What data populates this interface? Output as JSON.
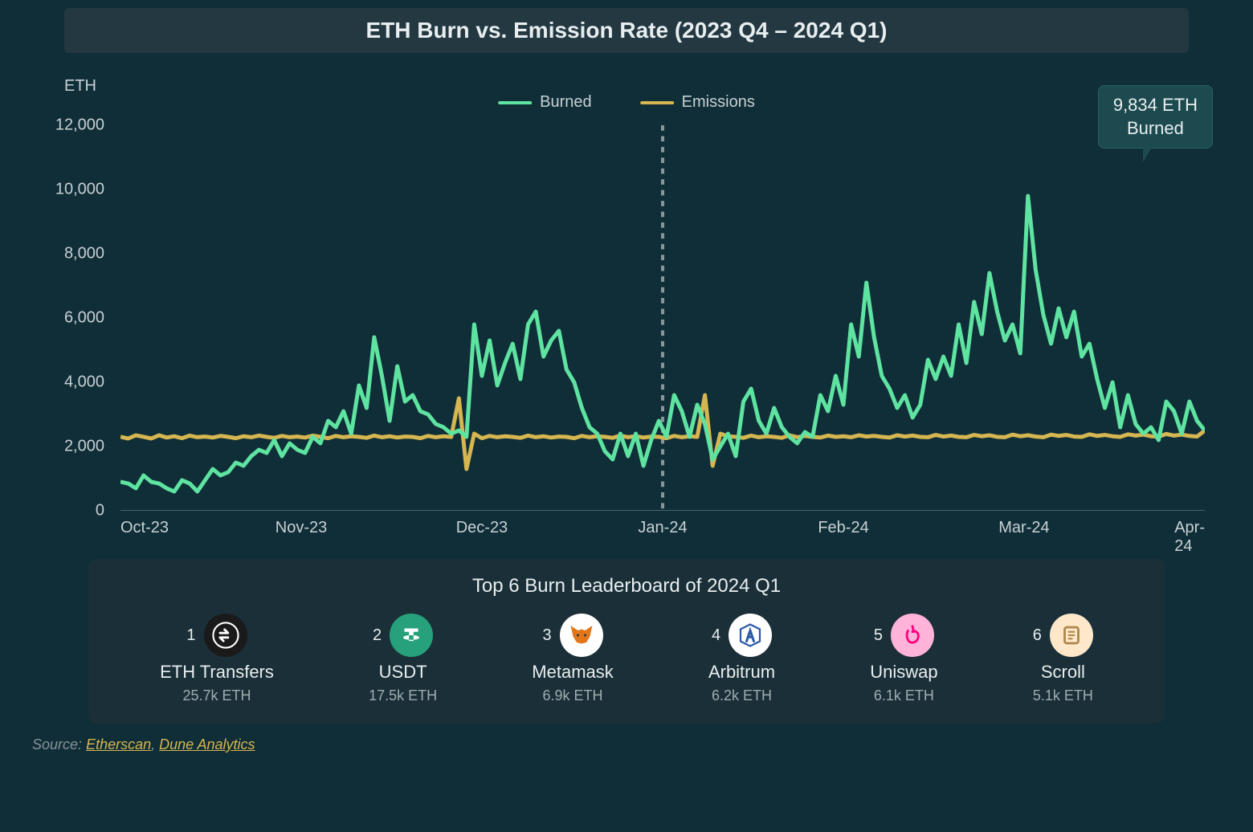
{
  "title": "ETH Burn vs. Emission Rate (2023 Q4 – 2024 Q1)",
  "chart": {
    "type": "line",
    "y_axis_title": "ETH",
    "ylim": [
      0,
      12000
    ],
    "y_ticks": [
      0,
      2000,
      4000,
      6000,
      8000,
      10000,
      12000
    ],
    "y_tick_labels": [
      "0",
      "2,000",
      "4,000",
      "6,000",
      "8,000",
      "10,000",
      "12,000"
    ],
    "x_labels": [
      "Oct-23",
      "Nov-23",
      "Dec-23",
      "Jan-24",
      "Feb-24",
      "Mar-24",
      "Apr-24"
    ],
    "x_positions_pct": [
      0,
      16.67,
      33.33,
      50,
      66.67,
      83.33,
      100
    ],
    "vline_at_pct": 50,
    "background_color": "#0f2e38",
    "grid_color": "#3a4a52",
    "axis_color": "#8a969c",
    "line_width": 3,
    "legend": [
      {
        "label": "Burned",
        "color": "#5fe3a1"
      },
      {
        "label": "Emissions",
        "color": "#d6b650"
      }
    ],
    "callout": {
      "line1": "9,834 ETH",
      "line2": "Burned"
    },
    "series": {
      "burned": {
        "color": "#5fe3a1",
        "values": [
          900,
          850,
          700,
          1100,
          900,
          850,
          700,
          600,
          950,
          850,
          600,
          950,
          1300,
          1100,
          1200,
          1500,
          1400,
          1700,
          1900,
          1800,
          2200,
          1700,
          2100,
          1900,
          1800,
          2300,
          2100,
          2800,
          2600,
          3100,
          2400,
          3900,
          3200,
          5400,
          4200,
          2800,
          4500,
          3400,
          3600,
          3100,
          3000,
          2700,
          2600,
          2400,
          2500,
          2300,
          5800,
          4200,
          5300,
          3900,
          4600,
          5200,
          4100,
          5800,
          6200,
          4800,
          5300,
          5600,
          4400,
          4000,
          3200,
          2600,
          2400,
          1850,
          1600,
          2400,
          1700,
          2400,
          1400,
          2200,
          2800,
          2300,
          3600,
          3100,
          2300,
          3300,
          2700,
          1600,
          2000,
          2400,
          1700,
          3400,
          3800,
          2800,
          2400,
          3200,
          2600,
          2300,
          2100,
          2450,
          2300,
          3600,
          3100,
          4200,
          3300,
          5800,
          4800,
          7100,
          5400,
          4200,
          3800,
          3200,
          3600,
          2900,
          3300,
          4700,
          4100,
          4800,
          4200,
          5800,
          4600,
          6500,
          5500,
          7400,
          6200,
          5300,
          5800,
          4900,
          9800,
          7500,
          6100,
          5200,
          6300,
          5400,
          6200,
          4800,
          5200,
          4100,
          3200,
          4000,
          2600,
          3600,
          2700,
          2400,
          2600,
          2200,
          3400,
          3100,
          2400,
          3400,
          2800,
          2500
        ]
      },
      "emissions": {
        "color": "#d6b650",
        "values": [
          2300,
          2250,
          2350,
          2300,
          2250,
          2350,
          2280,
          2320,
          2260,
          2340,
          2290,
          2310,
          2280,
          2330,
          2300,
          2260,
          2320,
          2290,
          2340,
          2300,
          2270,
          2330,
          2290,
          2310,
          2280,
          2340,
          2300,
          2260,
          2330,
          2290,
          2320,
          2300,
          2270,
          2340,
          2290,
          2320,
          2280,
          2310,
          2300,
          2260,
          2330,
          2290,
          2320,
          2300,
          3500,
          1300,
          2400,
          2260,
          2330,
          2290,
          2320,
          2300,
          2270,
          2340,
          2290,
          2320,
          2280,
          2310,
          2300,
          2260,
          2330,
          2290,
          2320,
          2300,
          2270,
          2340,
          2290,
          2320,
          2280,
          2310,
          2300,
          2260,
          2330,
          2290,
          2320,
          2300,
          3600,
          1400,
          2400,
          2320,
          2300,
          2270,
          2340,
          2290,
          2320,
          2300,
          2270,
          2350,
          2290,
          2330,
          2300,
          2280,
          2340,
          2300,
          2320,
          2290,
          2350,
          2310,
          2330,
          2300,
          2280,
          2350,
          2310,
          2340,
          2300,
          2290,
          2360,
          2310,
          2340,
          2300,
          2290,
          2360,
          2320,
          2350,
          2300,
          2290,
          2370,
          2320,
          2350,
          2310,
          2290,
          2370,
          2330,
          2360,
          2310,
          2300,
          2380,
          2330,
          2360,
          2320,
          2300,
          2380,
          2340,
          2370,
          2320,
          2310,
          2390,
          2340,
          2370,
          2330,
          2310,
          2500
        ]
      }
    }
  },
  "leaderboard": {
    "title": "Top 6 Burn Leaderboard of 2024 Q1",
    "items": [
      {
        "rank": "1",
        "name": "ETH Transfers",
        "value": "25.7k ETH",
        "icon_bg": "#1a1a1a",
        "icon_fg": "#ffffff",
        "icon_type": "swap"
      },
      {
        "rank": "2",
        "name": "USDT",
        "value": "17.5k ETH",
        "icon_bg": "#26a17b",
        "icon_fg": "#ffffff",
        "icon_type": "tether"
      },
      {
        "rank": "3",
        "name": "Metamask",
        "value": "6.9k ETH",
        "icon_bg": "#ffffff",
        "icon_fg": "#e2761b",
        "icon_type": "fox"
      },
      {
        "rank": "4",
        "name": "Arbitrum",
        "value": "6.2k ETH",
        "icon_bg": "#ffffff",
        "icon_fg": "#2d5aa8",
        "icon_type": "arbitrum"
      },
      {
        "rank": "5",
        "name": "Uniswap",
        "value": "6.1k ETH",
        "icon_bg": "#ffb3d9",
        "icon_fg": "#ff007a",
        "icon_type": "unicorn"
      },
      {
        "rank": "6",
        "name": "Scroll",
        "value": "5.1k ETH",
        "icon_bg": "#ffe8c9",
        "icon_fg": "#b08850",
        "icon_type": "scroll"
      }
    ]
  },
  "source": {
    "prefix": "Source:",
    "links": [
      {
        "text": "Etherscan"
      },
      {
        "text": "Dune Analytics"
      }
    ]
  }
}
